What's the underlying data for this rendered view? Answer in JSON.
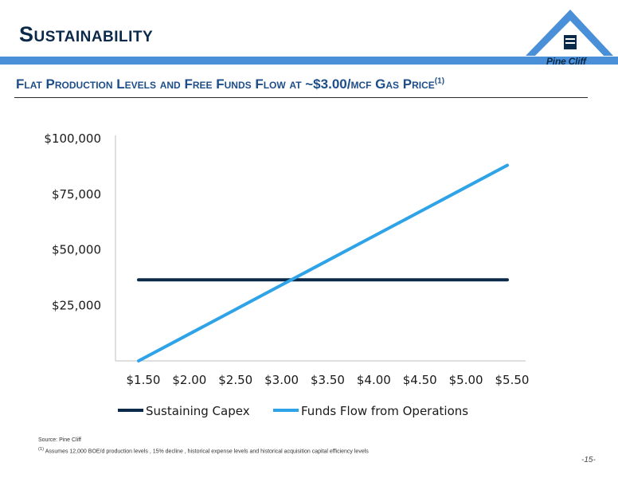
{
  "slide": {
    "title": "Sustainability",
    "subtitle": "Flat Production Levels and Free Funds Flow at ~$3.00/mcf Gas Price",
    "subtitle_sup": "(1)",
    "logo_text": "Pine Cliff",
    "source": "Source: Pine Cliff",
    "footnote_mark": "(1)",
    "footnote": "Assumes 12,000 BOE/d production levels , 15% decline , historical expense levels and historical acquisition capital efficiency levels",
    "page_number": "-15-"
  },
  "colors": {
    "title": "#0b2a4a",
    "bar": "#4a90d9",
    "subtitle": "#1d4e89",
    "sustaining_capex": "#0b2a4a",
    "funds_flow": "#2fa3e8"
  },
  "chart_data": {
    "type": "line",
    "title": "",
    "xlabel": "",
    "ylabel": "",
    "categories": [
      "$1.50",
      "$2.00",
      "$2.50",
      "$3.00",
      "$3.50",
      "$4.00",
      "$4.50",
      "$5.00",
      "$5.50"
    ],
    "y_ticks": [
      "$100,000",
      "$75,000",
      "$50,000",
      "$25,000"
    ],
    "y_tick_values": [
      100000,
      75000,
      50000,
      25000
    ],
    "ylim": [
      0,
      100000
    ],
    "grid": false,
    "legend_position": "bottom",
    "series": [
      {
        "name": "Sustaining Capex",
        "color": "#0b2a4a",
        "values": [
          36500,
          36500,
          36500,
          36500,
          36500,
          36500,
          36500,
          36500,
          36500
        ]
      },
      {
        "name": "Funds Flow from Operations",
        "color": "#2fa3e8",
        "values": [
          0,
          11000,
          22000,
          33000,
          44000,
          55000,
          66000,
          77000,
          88000
        ]
      }
    ]
  }
}
